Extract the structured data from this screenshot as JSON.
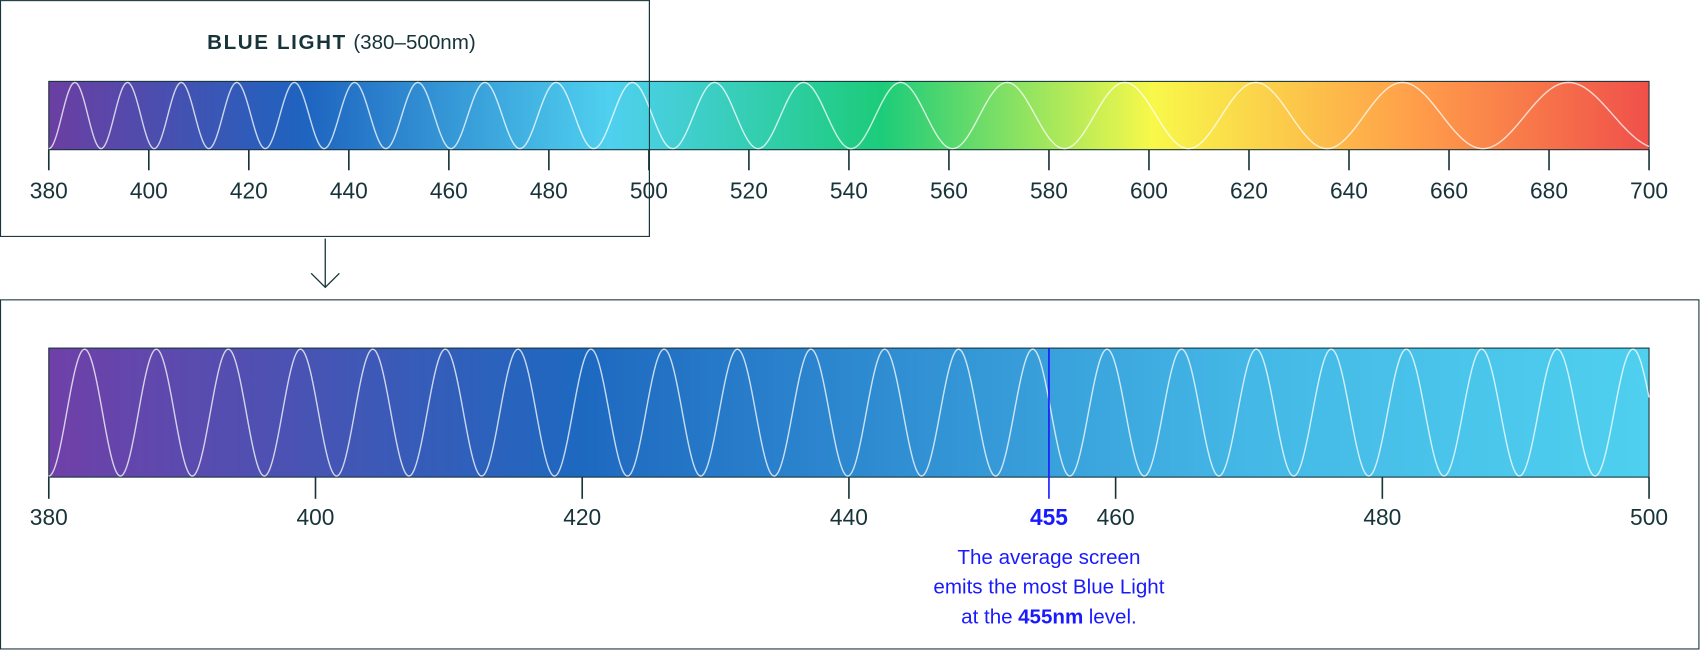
{
  "header": {
    "title": "BLUE LIGHT",
    "range": "(380–500nm)"
  },
  "spectrum": {
    "xlim": [
      380,
      700
    ],
    "ticks": [
      380,
      400,
      420,
      440,
      460,
      480,
      500,
      520,
      540,
      560,
      580,
      600,
      620,
      640,
      660,
      680,
      700
    ]
  },
  "detail": {
    "xlim": [
      380,
      500
    ],
    "ticks": [
      380,
      400,
      420,
      440,
      460,
      480,
      500
    ],
    "marker": 455,
    "note": {
      "lines": [
        "The average screen",
        "emits the most Blue Light"
      ],
      "prefix": "at the",
      "emphasis": "455nm",
      "suffix": "level."
    }
  }
}
